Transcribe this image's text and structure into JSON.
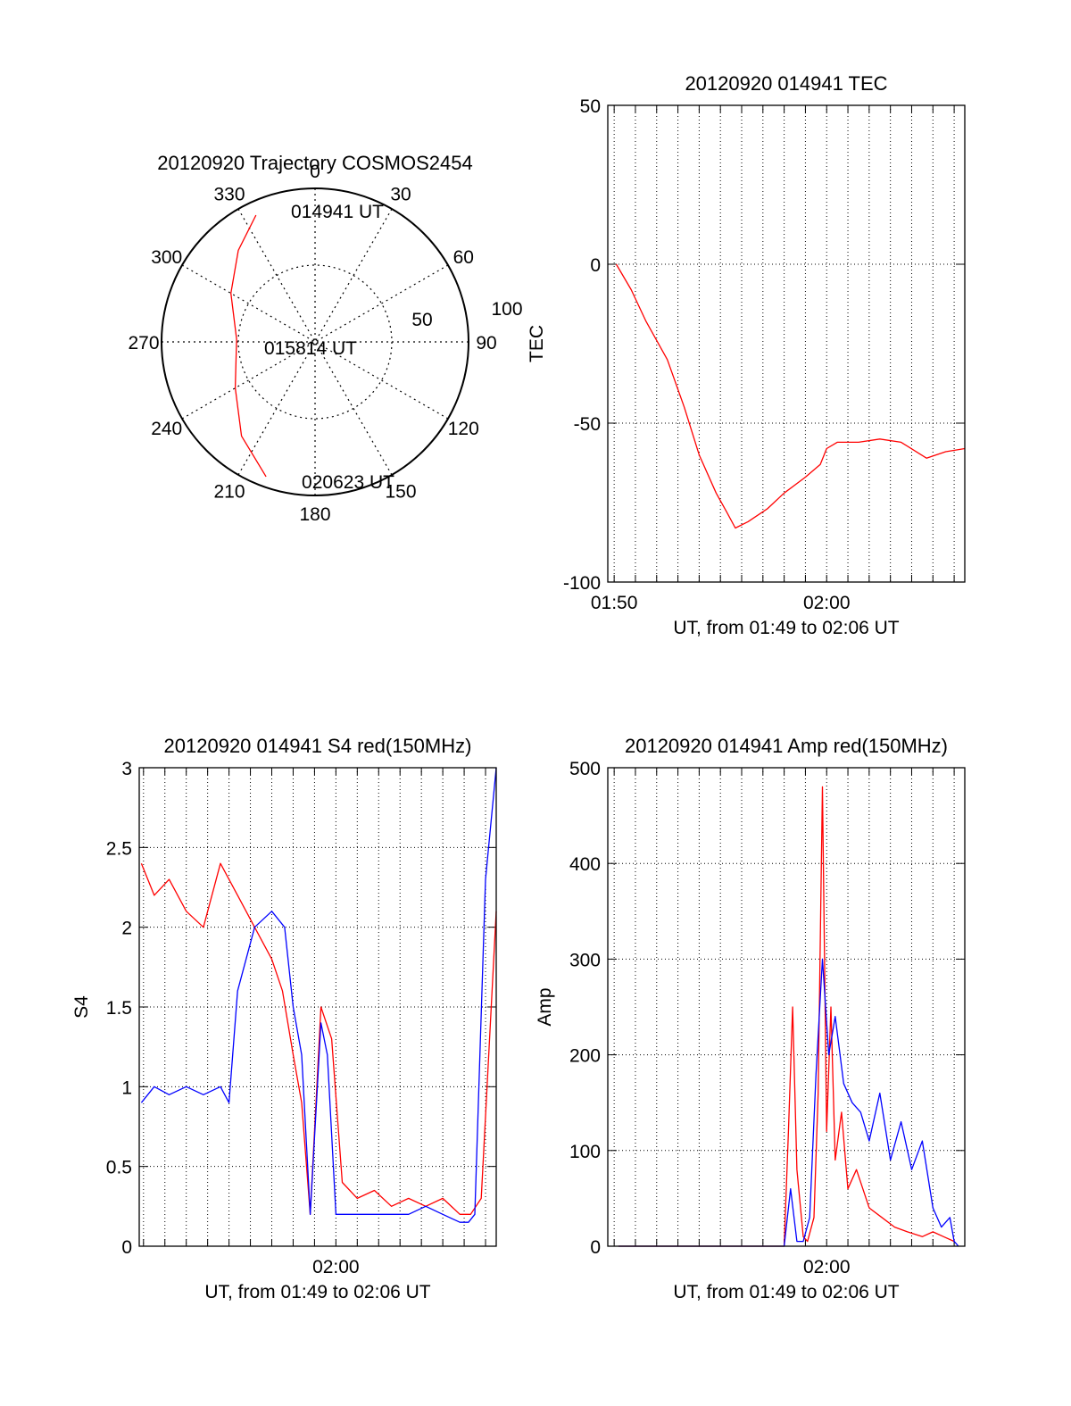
{
  "chart_data": [
    {
      "type": "polar-trajectory",
      "title": "20120920 Trajectory COSMOS2454",
      "azimuth_labels": [
        "0",
        "30",
        "60",
        "90",
        "120",
        "150",
        "180",
        "210",
        "240",
        "270",
        "300",
        "330"
      ],
      "radial_labels": [
        "50",
        "100"
      ],
      "trajectory": {
        "color": "#ff0000",
        "points": [
          {
            "az": 335,
            "el": 8
          },
          {
            "az": 320,
            "el": 20
          },
          {
            "az": 300,
            "el": 33
          },
          {
            "az": 272,
            "el": 44
          },
          {
            "az": 240,
            "el": 36
          },
          {
            "az": 218,
            "el": 20
          },
          {
            "az": 200,
            "el": 6
          }
        ]
      },
      "annotations": [
        "014941 UT",
        "015814 UT",
        "020623 UT"
      ]
    },
    {
      "type": "line",
      "title": "20120920 014941 TEC",
      "xlabel": "UT, from 01:49 to 02:06 UT",
      "ylabel": "TEC",
      "xlim_min": [
        109.7,
        126.5
      ],
      "ylim": [
        -100,
        50
      ],
      "yticks": [
        "-100",
        "-50",
        "0",
        "50"
      ],
      "xticks": [
        {
          "min": 110,
          "label": "01:50"
        },
        {
          "min": 120,
          "label": "02:00"
        }
      ],
      "grid": true,
      "series": [
        {
          "color": "#ff0000",
          "x": [
            110.1,
            110.8,
            111.5,
            112.5,
            113.3,
            114.0,
            114.8,
            115.3,
            115.7,
            116.3,
            117.2,
            118.0,
            119.0,
            119.7,
            120.0,
            120.5,
            121.5,
            122.5,
            123.5,
            124.7,
            125.6,
            126.5
          ],
          "y": [
            0,
            -8,
            -18,
            -30,
            -45,
            -60,
            -72,
            -78,
            -83,
            -81,
            -77,
            -72,
            -67,
            -63,
            -58,
            -56,
            -56,
            -55,
            -56,
            -61,
            -59,
            -58
          ]
        }
      ]
    },
    {
      "type": "line",
      "title": "20120920 014941 S4 red(150MHz)",
      "xlabel": "UT, from 01:49 to 02:06 UT",
      "ylabel": "S4",
      "xlim_min": [
        110.8,
        127.5
      ],
      "ylim": [
        0,
        3
      ],
      "yticks": [
        "0",
        "0.5",
        "1",
        "1.5",
        "2",
        "2.5",
        "3"
      ],
      "xticks": [
        {
          "min": 120,
          "label": "02:00"
        }
      ],
      "grid": true,
      "series": [
        {
          "color": "#ff0000",
          "x": [
            110.9,
            111.5,
            112.2,
            113.0,
            113.8,
            114.6,
            115.4,
            116.2,
            117.0,
            117.5,
            118.0,
            118.4,
            118.8,
            119.3,
            119.8,
            120.3,
            121.0,
            121.8,
            122.6,
            123.4,
            124.2,
            125.0,
            125.8,
            126.3,
            126.8,
            127.5
          ],
          "y": [
            2.4,
            2.2,
            2.3,
            2.1,
            2.0,
            2.4,
            2.2,
            2.0,
            1.8,
            1.6,
            1.2,
            0.9,
            0.2,
            1.5,
            1.3,
            0.4,
            0.3,
            0.35,
            0.25,
            0.3,
            0.25,
            0.3,
            0.2,
            0.2,
            0.3,
            2.1
          ]
        },
        {
          "color": "#0000ff",
          "x": [
            110.9,
            111.5,
            112.2,
            113.0,
            113.8,
            114.6,
            115.0,
            115.4,
            116.2,
            117.0,
            117.6,
            118.0,
            118.4,
            118.8,
            119.3,
            119.6,
            120.0,
            120.4,
            121.0,
            121.8,
            122.6,
            123.4,
            124.2,
            125.0,
            125.8,
            126.2,
            126.5,
            127.0,
            127.5
          ],
          "y": [
            0.9,
            1.0,
            0.95,
            1.0,
            0.95,
            1.0,
            0.9,
            1.6,
            2.0,
            2.1,
            2.0,
            1.5,
            1.2,
            0.2,
            1.4,
            1.2,
            0.2,
            0.2,
            0.2,
            0.2,
            0.2,
            0.2,
            0.25,
            0.2,
            0.15,
            0.15,
            0.2,
            2.3,
            3.0
          ]
        }
      ]
    },
    {
      "type": "line",
      "title": "20120920 014941 Amp red(150MHz)",
      "xlabel": "UT, from 01:49 to 02:06 UT",
      "ylabel": "Amp",
      "xlim_min": [
        109.7,
        126.5
      ],
      "ylim": [
        0,
        500
      ],
      "yticks": [
        "0",
        "100",
        "200",
        "300",
        "400",
        "500"
      ],
      "xticks": [
        {
          "min": 120,
          "label": "02:00"
        }
      ],
      "grid": true,
      "series": [
        {
          "color": "#ff0000",
          "x": [
            110.2,
            116.0,
            118.0,
            118.2,
            118.4,
            118.6,
            118.9,
            119.1,
            119.4,
            119.6,
            119.8,
            120.0,
            120.2,
            120.4,
            120.7,
            121.0,
            121.4,
            122.0,
            122.6,
            123.2,
            123.8,
            124.5,
            125.0,
            125.5,
            126.0
          ],
          "y": [
            0,
            0,
            0,
            120,
            250,
            80,
            10,
            5,
            30,
            160,
            480,
            120,
            250,
            90,
            140,
            60,
            80,
            40,
            30,
            20,
            15,
            10,
            15,
            10,
            5
          ]
        },
        {
          "color": "#0000ff",
          "x": [
            110.2,
            116.0,
            118.0,
            118.3,
            118.6,
            118.9,
            119.2,
            119.5,
            119.8,
            120.1,
            120.4,
            120.8,
            121.2,
            121.6,
            122.0,
            122.5,
            123.0,
            123.5,
            124.0,
            124.5,
            125.0,
            125.4,
            125.8,
            126.0,
            126.2
          ],
          "y": [
            0,
            0,
            0,
            60,
            5,
            5,
            30,
            180,
            300,
            200,
            240,
            170,
            150,
            140,
            110,
            160,
            90,
            130,
            80,
            110,
            40,
            20,
            30,
            5,
            0
          ]
        }
      ]
    }
  ]
}
